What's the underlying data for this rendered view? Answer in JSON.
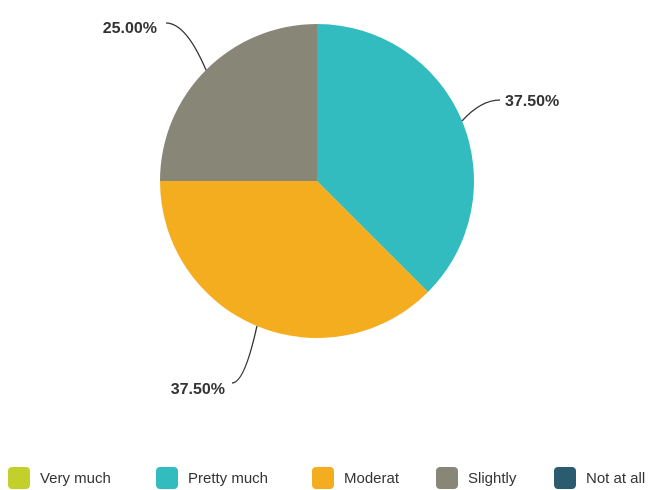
{
  "chart_data": {
    "type": "pie",
    "title": "",
    "categories": [
      "Very much",
      "Pretty much",
      "Moderat",
      "Slightly",
      "Not at all"
    ],
    "values": [
      0,
      37.5,
      37.5,
      25.0,
      0
    ],
    "value_labels": [
      "",
      "37.50%",
      "37.50%",
      "25.00%",
      ""
    ],
    "colors": [
      "#c3cf2a",
      "#33bcbf",
      "#f5ad20",
      "#878677",
      "#2a5b6e"
    ],
    "legend_position": "bottom",
    "start_angle": "top, clockwise"
  }
}
